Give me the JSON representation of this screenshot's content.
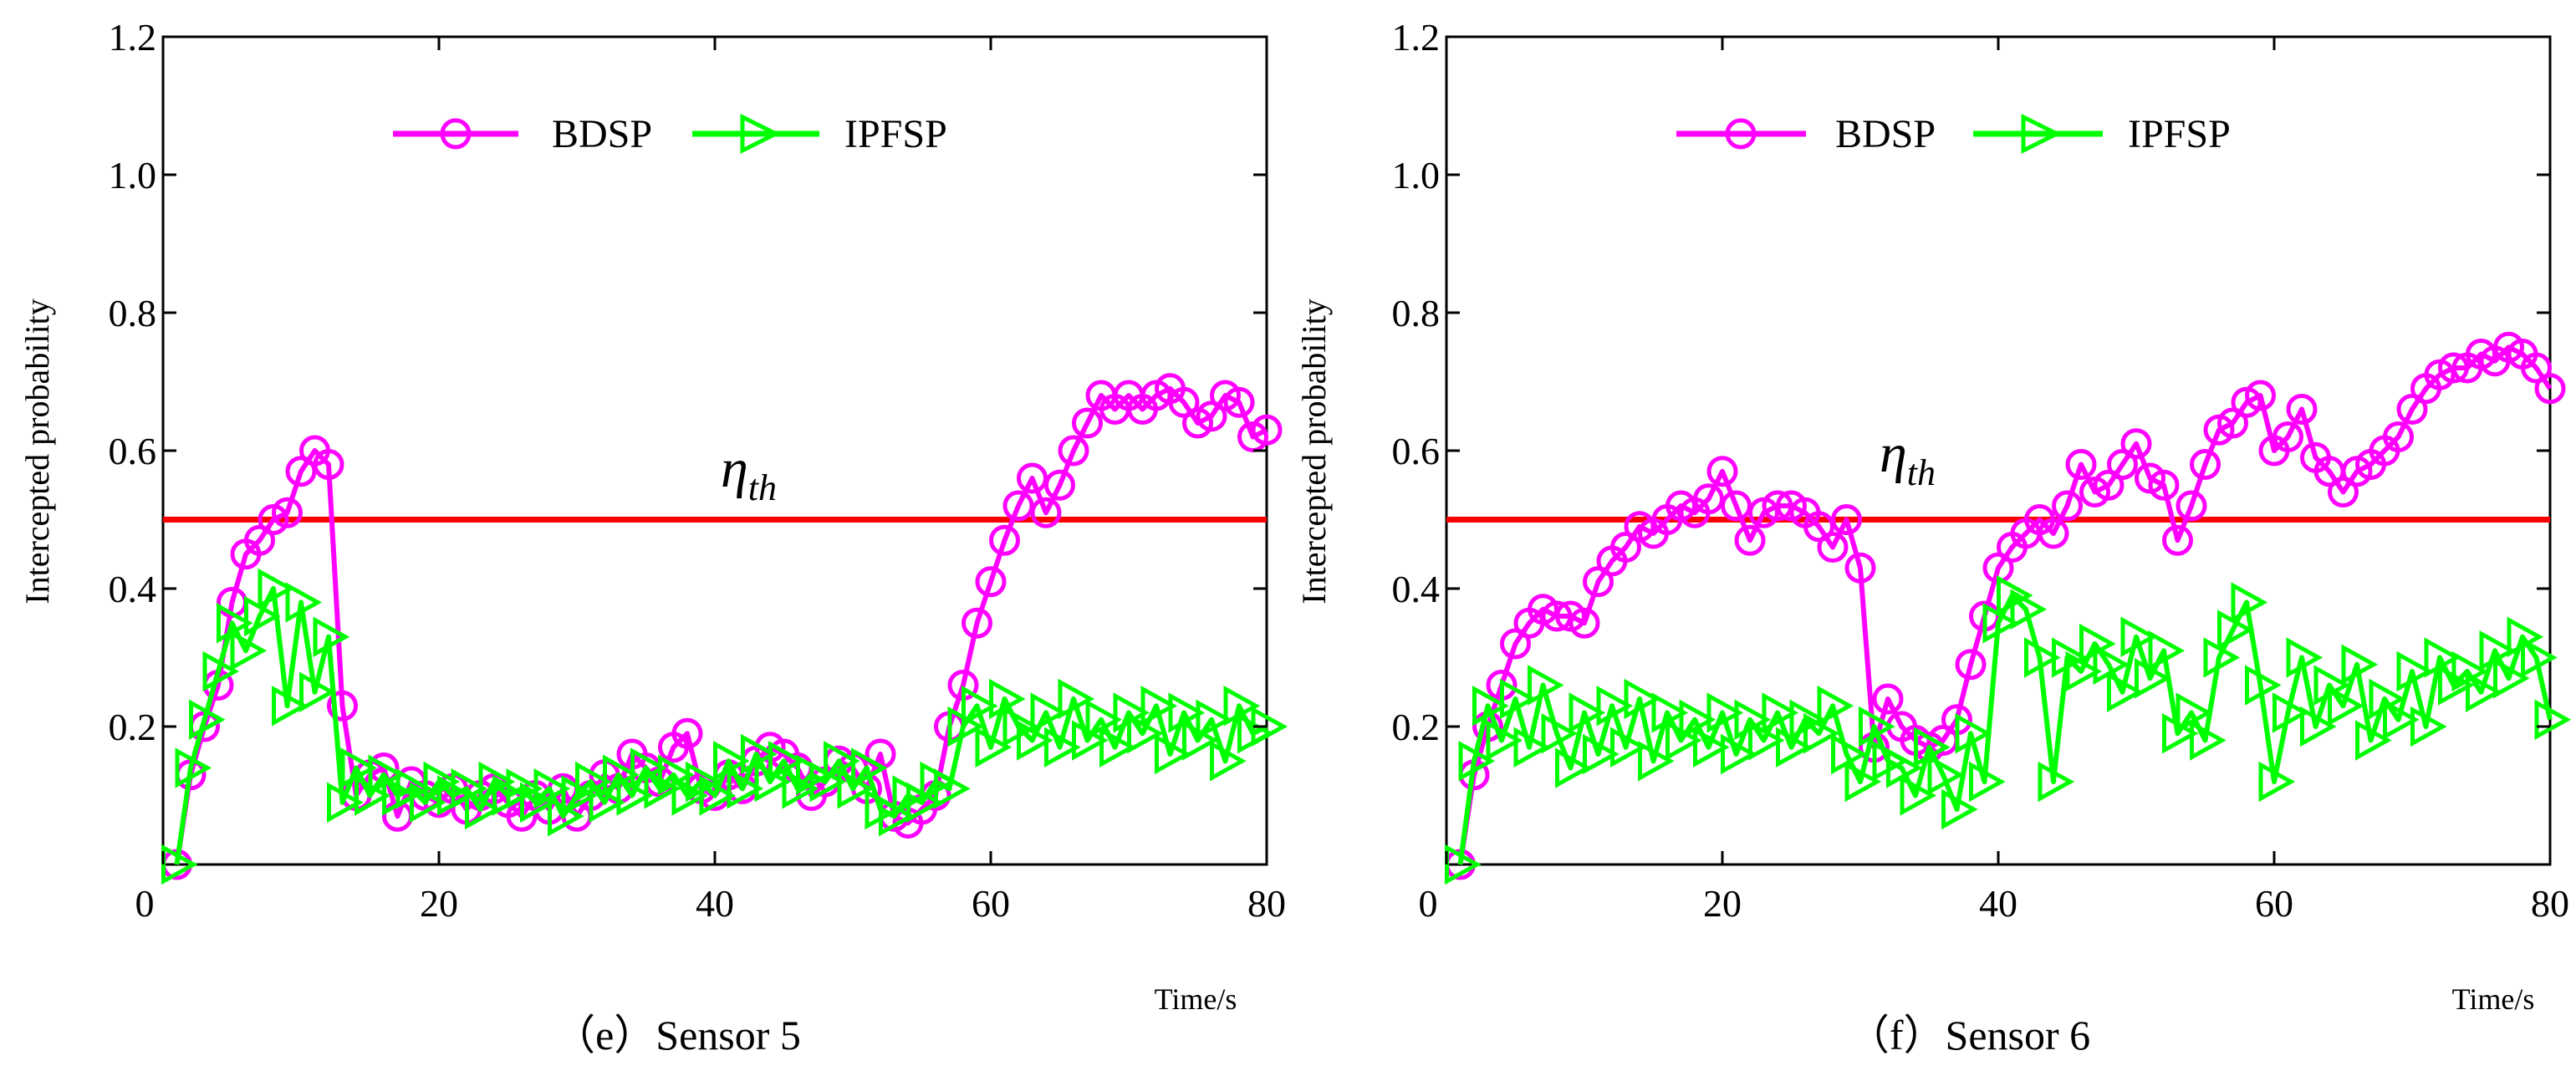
{
  "chart_data": [
    {
      "type": "line",
      "caption": "（e）Sensor 5",
      "xlabel": "Time/s",
      "ylabel": "Intercepted probability",
      "xlim": [
        0,
        80
      ],
      "ylim": [
        0,
        1.2
      ],
      "xticks": [
        0,
        20,
        40,
        60,
        80
      ],
      "yticks": [
        0.2,
        0.4,
        0.6,
        0.8,
        1.0,
        1.2
      ],
      "ytick_labels": [
        "0.2",
        "0.4",
        "0.6",
        "0.8",
        "1.0",
        "1.2"
      ],
      "legend_position": "top-center",
      "threshold": {
        "label": "η",
        "label_sub": "th",
        "value": 0.5,
        "color": "#ff0000"
      },
      "series": [
        {
          "name": "BDSP",
          "color": "#ff00ff",
          "marker": "circle",
          "x": [
            1,
            2,
            3,
            4,
            5,
            6,
            7,
            8,
            9,
            10,
            11,
            12,
            13,
            14,
            15,
            16,
            17,
            18,
            19,
            20,
            21,
            22,
            23,
            24,
            25,
            26,
            27,
            28,
            29,
            30,
            31,
            32,
            33,
            34,
            35,
            36,
            37,
            38,
            39,
            40,
            41,
            42,
            43,
            44,
            45,
            46,
            47,
            48,
            49,
            50,
            51,
            52,
            53,
            54,
            55,
            56,
            57,
            58,
            59,
            60,
            61,
            62,
            63,
            64,
            65,
            66,
            67,
            68,
            69,
            70,
            71,
            72,
            73,
            74,
            75,
            76,
            77,
            78,
            79,
            80
          ],
          "y": [
            0.0,
            0.13,
            0.2,
            0.26,
            0.38,
            0.45,
            0.47,
            0.5,
            0.51,
            0.57,
            0.6,
            0.58,
            0.23,
            0.1,
            0.13,
            0.14,
            0.07,
            0.12,
            0.1,
            0.09,
            0.11,
            0.08,
            0.1,
            0.11,
            0.09,
            0.07,
            0.1,
            0.08,
            0.11,
            0.07,
            0.1,
            0.13,
            0.11,
            0.16,
            0.14,
            0.12,
            0.17,
            0.19,
            0.11,
            0.1,
            0.13,
            0.11,
            0.15,
            0.17,
            0.16,
            0.14,
            0.1,
            0.12,
            0.15,
            0.14,
            0.11,
            0.16,
            0.07,
            0.06,
            0.08,
            0.1,
            0.2,
            0.26,
            0.35,
            0.41,
            0.47,
            0.52,
            0.56,
            0.51,
            0.55,
            0.6,
            0.64,
            0.68,
            0.66,
            0.68,
            0.66,
            0.68,
            0.69,
            0.67,
            0.64,
            0.65,
            0.68,
            0.67,
            0.62,
            0.63
          ]
        },
        {
          "name": "IPFSP",
          "color": "#00ff00",
          "marker": "triangle-right",
          "x": [
            1,
            2,
            3,
            4,
            5,
            6,
            7,
            8,
            9,
            10,
            11,
            12,
            13,
            14,
            15,
            16,
            17,
            18,
            19,
            20,
            21,
            22,
            23,
            24,
            25,
            26,
            27,
            28,
            29,
            30,
            31,
            32,
            33,
            34,
            35,
            36,
            37,
            38,
            39,
            40,
            41,
            42,
            43,
            44,
            45,
            46,
            47,
            48,
            49,
            50,
            51,
            52,
            53,
            54,
            55,
            56,
            57,
            58,
            59,
            60,
            61,
            62,
            63,
            64,
            65,
            66,
            67,
            68,
            69,
            70,
            71,
            72,
            73,
            74,
            75,
            76,
            77,
            78,
            79,
            80
          ],
          "y": [
            0.0,
            0.14,
            0.21,
            0.28,
            0.35,
            0.31,
            0.36,
            0.4,
            0.23,
            0.38,
            0.25,
            0.33,
            0.09,
            0.14,
            0.1,
            0.13,
            0.1,
            0.11,
            0.09,
            0.12,
            0.1,
            0.11,
            0.08,
            0.12,
            0.1,
            0.11,
            0.09,
            0.11,
            0.07,
            0.1,
            0.12,
            0.09,
            0.13,
            0.1,
            0.14,
            0.11,
            0.13,
            0.1,
            0.12,
            0.1,
            0.15,
            0.11,
            0.16,
            0.12,
            0.15,
            0.11,
            0.13,
            0.12,
            0.15,
            0.11,
            0.14,
            0.08,
            0.07,
            0.1,
            0.09,
            0.12,
            0.11,
            0.2,
            0.23,
            0.17,
            0.24,
            0.2,
            0.18,
            0.22,
            0.17,
            0.24,
            0.18,
            0.21,
            0.17,
            0.22,
            0.19,
            0.23,
            0.16,
            0.22,
            0.18,
            0.21,
            0.15,
            0.23,
            0.19,
            0.2
          ]
        }
      ]
    },
    {
      "type": "line",
      "caption": "（f）Sensor 6",
      "xlabel": "Time/s",
      "ylabel": "Intercepted probability",
      "xlim": [
        0,
        80
      ],
      "ylim": [
        0,
        1.2
      ],
      "xticks": [
        0,
        20,
        40,
        60,
        80
      ],
      "yticks": [
        0.2,
        0.4,
        0.6,
        0.8,
        1.0,
        1.2
      ],
      "ytick_labels": [
        "0.2",
        "0.4",
        "0.6",
        "0.8",
        "1.0",
        "1.2"
      ],
      "legend_position": "top-center",
      "threshold": {
        "label": "η",
        "label_sub": "th",
        "value": 0.5,
        "color": "#ff0000"
      },
      "series": [
        {
          "name": "BDSP",
          "color": "#ff00ff",
          "marker": "circle",
          "x": [
            1,
            2,
            3,
            4,
            5,
            6,
            7,
            8,
            9,
            10,
            11,
            12,
            13,
            14,
            15,
            16,
            17,
            18,
            19,
            20,
            21,
            22,
            23,
            24,
            25,
            26,
            27,
            28,
            29,
            30,
            31,
            32,
            33,
            34,
            35,
            36,
            37,
            38,
            39,
            40,
            41,
            42,
            43,
            44,
            45,
            46,
            47,
            48,
            49,
            50,
            51,
            52,
            53,
            54,
            55,
            56,
            57,
            58,
            59,
            60,
            61,
            62,
            63,
            64,
            65,
            66,
            67,
            68,
            69,
            70,
            71,
            72,
            73,
            74,
            75,
            76,
            77,
            78,
            79,
            80
          ],
          "y": [
            0.0,
            0.13,
            0.2,
            0.26,
            0.32,
            0.35,
            0.37,
            0.36,
            0.36,
            0.35,
            0.41,
            0.44,
            0.46,
            0.49,
            0.48,
            0.5,
            0.52,
            0.51,
            0.53,
            0.57,
            0.52,
            0.47,
            0.51,
            0.52,
            0.52,
            0.51,
            0.49,
            0.46,
            0.5,
            0.43,
            0.17,
            0.24,
            0.2,
            0.18,
            0.17,
            0.18,
            0.21,
            0.29,
            0.36,
            0.43,
            0.46,
            0.48,
            0.5,
            0.48,
            0.52,
            0.58,
            0.54,
            0.55,
            0.58,
            0.61,
            0.56,
            0.55,
            0.47,
            0.52,
            0.58,
            0.63,
            0.64,
            0.67,
            0.68,
            0.6,
            0.62,
            0.66,
            0.59,
            0.57,
            0.54,
            0.57,
            0.58,
            0.6,
            0.62,
            0.66,
            0.69,
            0.71,
            0.72,
            0.72,
            0.74,
            0.73,
            0.75,
            0.74,
            0.72,
            0.69
          ]
        },
        {
          "name": "IPFSP",
          "color": "#00ff00",
          "marker": "triangle-right",
          "x": [
            1,
            2,
            3,
            4,
            5,
            6,
            7,
            8,
            9,
            10,
            11,
            12,
            13,
            14,
            15,
            16,
            17,
            18,
            19,
            20,
            21,
            22,
            23,
            24,
            25,
            26,
            27,
            28,
            29,
            30,
            31,
            32,
            33,
            34,
            35,
            36,
            37,
            38,
            39,
            40,
            41,
            42,
            43,
            44,
            45,
            46,
            47,
            48,
            49,
            50,
            51,
            52,
            53,
            54,
            55,
            56,
            57,
            58,
            59,
            60,
            61,
            62,
            63,
            64,
            65,
            66,
            67,
            68,
            69,
            70,
            71,
            72,
            73,
            74,
            75,
            76,
            77,
            78,
            79,
            80
          ],
          "y": [
            0.0,
            0.15,
            0.23,
            0.18,
            0.24,
            0.17,
            0.26,
            0.19,
            0.14,
            0.22,
            0.16,
            0.23,
            0.17,
            0.24,
            0.15,
            0.22,
            0.18,
            0.21,
            0.17,
            0.22,
            0.16,
            0.21,
            0.18,
            0.22,
            0.17,
            0.21,
            0.19,
            0.23,
            0.16,
            0.12,
            0.2,
            0.15,
            0.14,
            0.1,
            0.17,
            0.13,
            0.08,
            0.19,
            0.12,
            0.35,
            0.39,
            0.37,
            0.3,
            0.12,
            0.3,
            0.28,
            0.32,
            0.29,
            0.25,
            0.33,
            0.27,
            0.31,
            0.19,
            0.22,
            0.18,
            0.3,
            0.34,
            0.38,
            0.26,
            0.12,
            0.22,
            0.3,
            0.2,
            0.26,
            0.23,
            0.29,
            0.18,
            0.24,
            0.21,
            0.28,
            0.2,
            0.3,
            0.26,
            0.28,
            0.25,
            0.31,
            0.27,
            0.33,
            0.3,
            0.21
          ]
        }
      ]
    }
  ]
}
